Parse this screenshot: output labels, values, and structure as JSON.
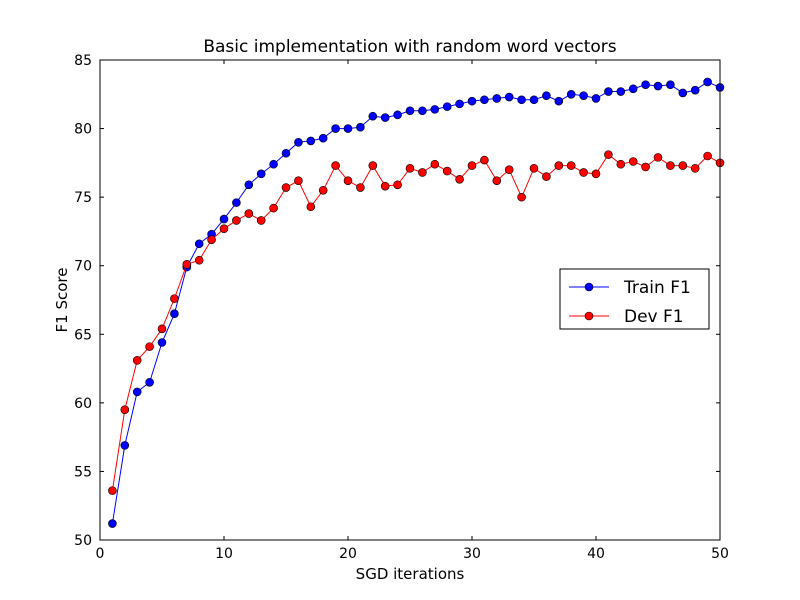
{
  "chart_data": {
    "type": "line",
    "title": "Basic implementation with random word vectors",
    "xlabel": "SGD iterations",
    "ylabel": "F1 Score",
    "xlim": [
      0,
      50
    ],
    "ylim": [
      50,
      85
    ],
    "xticks": [
      0,
      10,
      20,
      30,
      40,
      50
    ],
    "yticks": [
      50,
      55,
      60,
      65,
      70,
      75,
      80,
      85
    ],
    "grid": false,
    "legend": "center-right",
    "x": [
      1,
      2,
      3,
      4,
      5,
      6,
      7,
      8,
      9,
      10,
      11,
      12,
      13,
      14,
      15,
      16,
      17,
      18,
      19,
      20,
      21,
      22,
      23,
      24,
      25,
      26,
      27,
      28,
      29,
      30,
      31,
      32,
      33,
      34,
      35,
      36,
      37,
      38,
      39,
      40,
      41,
      42,
      43,
      44,
      45,
      46,
      47,
      48,
      49,
      50
    ],
    "series": [
      {
        "name": "Train F1",
        "color": "#0000ff",
        "marker": "circle",
        "values": [
          51.2,
          56.9,
          60.8,
          61.5,
          64.4,
          66.5,
          69.9,
          71.6,
          72.3,
          73.4,
          74.6,
          75.9,
          76.7,
          77.4,
          78.2,
          79.0,
          79.1,
          79.3,
          80.0,
          80.0,
          80.1,
          80.9,
          80.8,
          81.0,
          81.3,
          81.3,
          81.4,
          81.6,
          81.8,
          82.0,
          82.1,
          82.2,
          82.3,
          82.1,
          82.1,
          82.4,
          82.0,
          82.5,
          82.4,
          82.2,
          82.7,
          82.7,
          82.9,
          83.2,
          83.1,
          83.2,
          82.6,
          82.8,
          83.4,
          83.0
        ]
      },
      {
        "name": "Dev F1",
        "color": "#ff0000",
        "marker": "circle",
        "values": [
          53.6,
          59.5,
          63.1,
          64.1,
          65.4,
          67.6,
          70.1,
          70.4,
          71.9,
          72.7,
          73.3,
          73.8,
          73.3,
          74.2,
          75.7,
          76.2,
          74.3,
          75.5,
          77.3,
          76.2,
          75.7,
          77.3,
          75.8,
          75.9,
          77.1,
          76.8,
          77.4,
          76.9,
          76.3,
          77.3,
          77.7,
          76.2,
          77.0,
          75.0,
          77.1,
          76.5,
          77.3,
          77.3,
          76.8,
          76.7,
          78.1,
          77.4,
          77.6,
          77.2,
          77.9,
          77.3,
          77.3,
          77.1,
          78.0,
          77.5
        ]
      }
    ]
  }
}
